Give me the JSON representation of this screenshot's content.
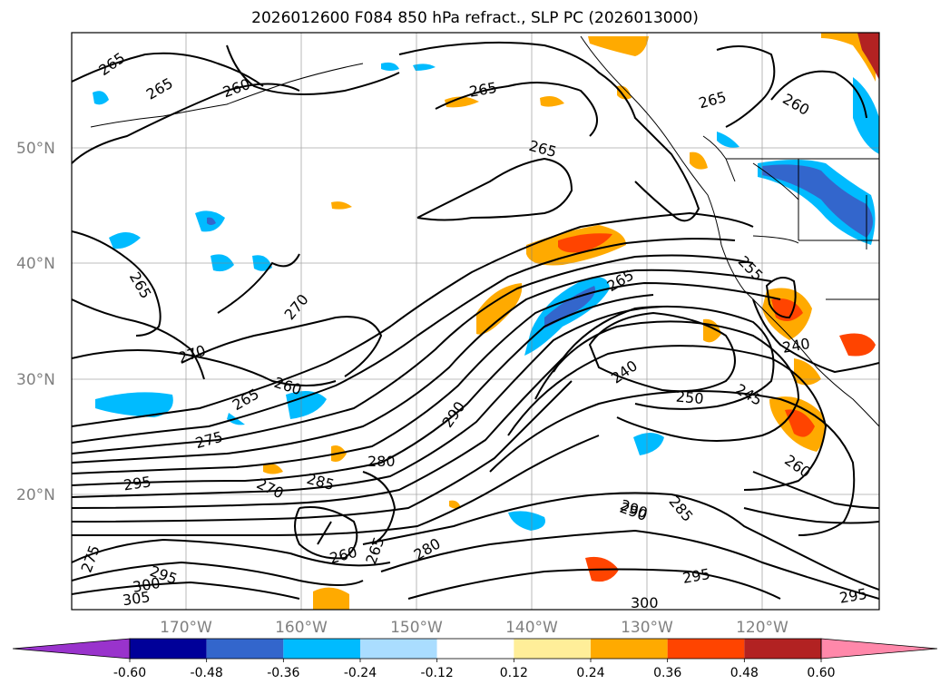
{
  "title": "2026012600 F084 850 hPa refract., SLP PC (2026013000)",
  "map": {
    "region": "North-East Pacific",
    "lat_range": [
      10,
      60
    ],
    "lon_range": [
      -180,
      -110
    ],
    "lat_ticks": [
      {
        "value": 20,
        "label": "20°N"
      },
      {
        "value": 30,
        "label": "30°N"
      },
      {
        "value": 40,
        "label": "40°N"
      },
      {
        "value": 50,
        "label": "50°N"
      }
    ],
    "lon_ticks": [
      {
        "value": -170,
        "label": "170°W"
      },
      {
        "value": -160,
        "label": "160°W"
      },
      {
        "value": -150,
        "label": "150°W"
      },
      {
        "value": -140,
        "label": "140°W"
      },
      {
        "value": -130,
        "label": "130°W"
      },
      {
        "value": -120,
        "label": "120°W"
      }
    ],
    "contour_labels": [
      "265",
      "265",
      "260",
      "265",
      "265",
      "260",
      "265",
      "265",
      "265",
      "270",
      "270",
      "265",
      "260",
      "275",
      "295",
      "270",
      "285",
      "280",
      "290",
      "290",
      "280",
      "260",
      "265",
      "275",
      "300",
      "295",
      "305",
      "240",
      "250",
      "245",
      "260",
      "290",
      "285",
      "295",
      "300",
      "295",
      "240",
      "255"
    ]
  },
  "colorbar": {
    "levels": [
      "-0.60",
      "-0.48",
      "-0.36",
      "-0.24",
      "-0.12",
      "0.12",
      "0.24",
      "0.36",
      "0.48",
      "0.60"
    ],
    "colors": [
      "#9933cc",
      "#000099",
      "#3366cc",
      "#00bbff",
      "#aaddff",
      "#ffffff",
      "#ffee99",
      "#ffaa00",
      "#ff4400",
      "#b22222",
      "#ff88aa"
    ]
  }
}
